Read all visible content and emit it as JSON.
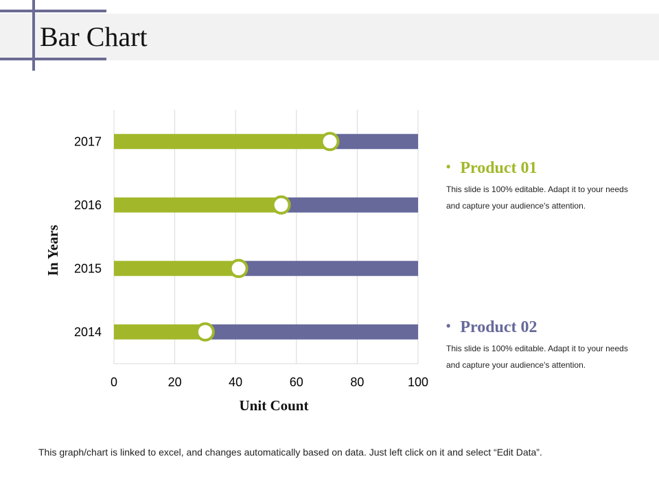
{
  "slide": {
    "title": "Bar Chart",
    "footnote": "This graph/chart is linked to excel, and changes automatically based on data. Just left click on it and select “Edit Data”."
  },
  "legend": [
    {
      "name": "Product 01",
      "color": "#a2b82a",
      "description": "This slide is 100% editable. Adapt it to your needs and capture your audience's attention."
    },
    {
      "name": "Product 02",
      "color": "#66699a",
      "description": "This slide is 100% editable. Adapt it to your needs and capture your audience's attention."
    }
  ],
  "colors": {
    "product01": "#a2b82a",
    "product02": "#66699a",
    "decoration": "#6b6b94",
    "title_band": "#f2f2f2",
    "grid": "#d9d9d9"
  },
  "chart_data": {
    "type": "bar",
    "orientation": "horizontal",
    "stacked": true,
    "categories": [
      "2017",
      "2016",
      "2015",
      "2014"
    ],
    "series": [
      {
        "name": "Product 01",
        "values": [
          71,
          55,
          41,
          30
        ]
      },
      {
        "name": "Product 02",
        "values": [
          29,
          45,
          59,
          70
        ]
      }
    ],
    "marker_on_segment_boundary": true,
    "xlabel": "Unit Count",
    "ylabel": "In Years",
    "xlim": [
      0,
      100
    ],
    "xticks": [
      0,
      20,
      40,
      60,
      80,
      100
    ],
    "grid": true,
    "legend_placement": "right"
  }
}
